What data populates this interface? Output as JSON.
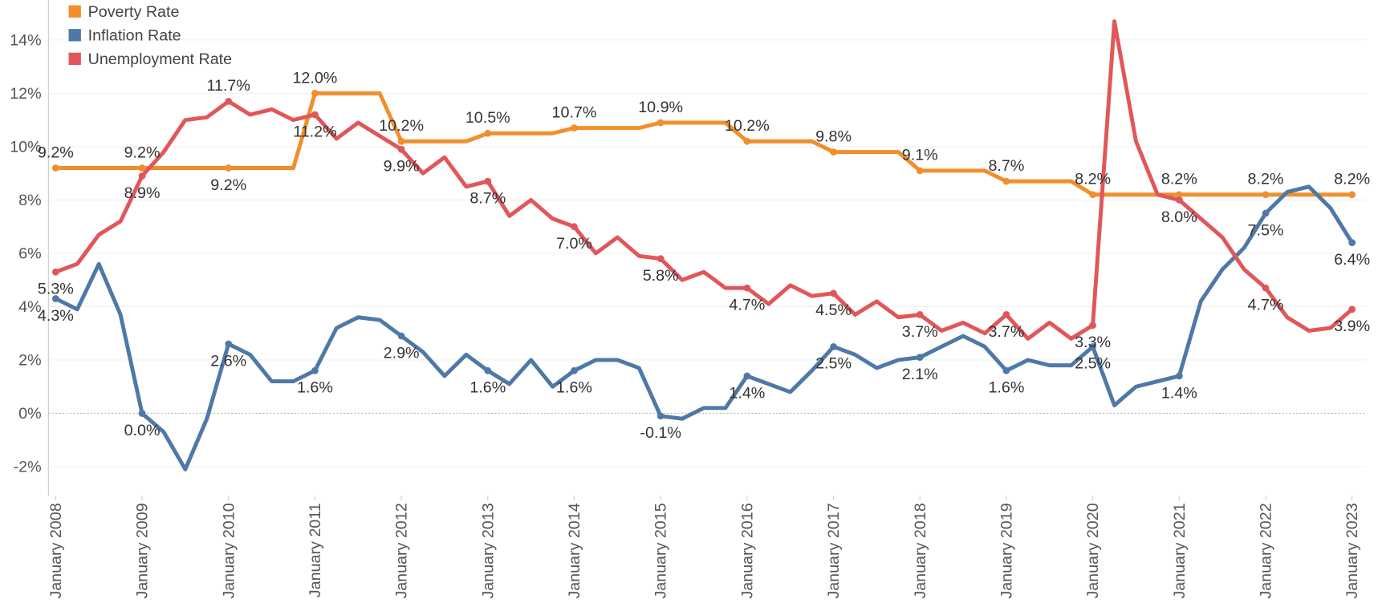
{
  "chart_data": {
    "type": "line",
    "x": [
      "2008-01",
      "2008-04",
      "2008-07",
      "2008-10",
      "2009-01",
      "2009-04",
      "2009-07",
      "2009-10",
      "2010-01",
      "2010-04",
      "2010-07",
      "2010-10",
      "2011-01",
      "2011-04",
      "2011-07",
      "2011-10",
      "2012-01",
      "2012-04",
      "2012-07",
      "2012-10",
      "2013-01",
      "2013-04",
      "2013-07",
      "2013-10",
      "2014-01",
      "2014-04",
      "2014-07",
      "2014-10",
      "2015-01",
      "2015-04",
      "2015-07",
      "2015-10",
      "2016-01",
      "2016-04",
      "2016-07",
      "2016-10",
      "2017-01",
      "2017-04",
      "2017-07",
      "2017-10",
      "2018-01",
      "2018-04",
      "2018-07",
      "2018-10",
      "2019-01",
      "2019-04",
      "2019-07",
      "2019-10",
      "2020-01",
      "2020-04",
      "2020-07",
      "2020-10",
      "2021-01",
      "2021-04",
      "2021-07",
      "2021-10",
      "2022-01",
      "2022-04",
      "2022-07",
      "2022-10",
      "2023-01"
    ],
    "xlim": [
      "2007-12",
      "2023-03"
    ],
    "xticks": [
      {
        "value": "2008-01",
        "label": "January 2008"
      },
      {
        "value": "2009-01",
        "label": "January 2009"
      },
      {
        "value": "2010-01",
        "label": "January 2010"
      },
      {
        "value": "2011-01",
        "label": "January 2011"
      },
      {
        "value": "2012-01",
        "label": "January 2012"
      },
      {
        "value": "2013-01",
        "label": "January 2013"
      },
      {
        "value": "2014-01",
        "label": "January 2014"
      },
      {
        "value": "2015-01",
        "label": "January 2015"
      },
      {
        "value": "2016-01",
        "label": "January 2016"
      },
      {
        "value": "2017-01",
        "label": "January 2017"
      },
      {
        "value": "2018-01",
        "label": "January 2018"
      },
      {
        "value": "2019-01",
        "label": "January 2019"
      },
      {
        "value": "2020-01",
        "label": "January 2020"
      },
      {
        "value": "2021-01",
        "label": "January 2021"
      },
      {
        "value": "2022-01",
        "label": "January 2022"
      },
      {
        "value": "2023-01",
        "label": "January 2023"
      }
    ],
    "ylim": [
      -3.1,
      15.5
    ],
    "yticks": [
      {
        "value": -2,
        "label": "-2%"
      },
      {
        "value": 0,
        "label": "0%"
      },
      {
        "value": 2,
        "label": "2%"
      },
      {
        "value": 4,
        "label": "4%"
      },
      {
        "value": 6,
        "label": "6%"
      },
      {
        "value": 8,
        "label": "8%"
      },
      {
        "value": 10,
        "label": "10%"
      },
      {
        "value": 12,
        "label": "12%"
      },
      {
        "value": 14,
        "label": "14%"
      }
    ],
    "grid": true,
    "legend": "top-left",
    "series": [
      {
        "name": "Poverty Rate",
        "color": "#f28e2b",
        "values": [
          9.2,
          9.2,
          9.2,
          9.2,
          9.2,
          9.2,
          9.2,
          9.2,
          9.2,
          9.2,
          9.2,
          9.2,
          12.0,
          12.0,
          12.0,
          12.0,
          10.2,
          10.2,
          10.2,
          10.2,
          10.5,
          10.5,
          10.5,
          10.5,
          10.7,
          10.7,
          10.7,
          10.7,
          10.9,
          10.9,
          10.9,
          10.9,
          10.2,
          10.2,
          10.2,
          10.2,
          9.8,
          9.8,
          9.8,
          9.8,
          9.1,
          9.1,
          9.1,
          9.1,
          8.7,
          8.7,
          8.7,
          8.7,
          8.2,
          8.2,
          8.2,
          8.2,
          8.2,
          8.2,
          8.2,
          8.2,
          8.2,
          8.2,
          8.2,
          8.2,
          8.2
        ],
        "value_labels": [
          "9.2%",
          null,
          null,
          null,
          "9.2%",
          null,
          null,
          null,
          "9.2%",
          null,
          null,
          null,
          "12.0%",
          null,
          null,
          null,
          "10.2%",
          null,
          null,
          null,
          "10.5%",
          null,
          null,
          null,
          "10.7%",
          null,
          null,
          null,
          "10.9%",
          null,
          null,
          null,
          "10.2%",
          null,
          null,
          null,
          "9.8%",
          null,
          null,
          null,
          "9.1%",
          null,
          null,
          null,
          "8.7%",
          null,
          null,
          null,
          "8.2%",
          null,
          null,
          null,
          "8.2%",
          null,
          null,
          null,
          "8.2%",
          null,
          null,
          null,
          "8.2%"
        ]
      },
      {
        "name": "Inflation Rate",
        "color": "#4e79a7",
        "values": [
          4.3,
          3.9,
          5.6,
          3.7,
          0.0,
          -0.7,
          -2.1,
          -0.2,
          2.6,
          2.2,
          1.2,
          1.2,
          1.6,
          3.2,
          3.6,
          3.5,
          2.9,
          2.3,
          1.4,
          2.2,
          1.6,
          1.1,
          2.0,
          1.0,
          1.6,
          2.0,
          2.0,
          1.7,
          -0.1,
          -0.2,
          0.2,
          0.2,
          1.4,
          1.1,
          0.8,
          1.6,
          2.5,
          2.2,
          1.7,
          2.0,
          2.1,
          2.5,
          2.9,
          2.5,
          1.6,
          2.0,
          1.8,
          1.8,
          2.5,
          0.3,
          1.0,
          1.2,
          1.4,
          4.2,
          5.4,
          6.2,
          7.5,
          8.3,
          8.5,
          7.7,
          6.4
        ],
        "value_labels": [
          "4.3%",
          null,
          null,
          null,
          "0.0%",
          null,
          null,
          null,
          "2.6%",
          null,
          null,
          null,
          "1.6%",
          null,
          null,
          null,
          "2.9%",
          null,
          null,
          null,
          "1.6%",
          null,
          null,
          null,
          "1.6%",
          null,
          null,
          null,
          "-0.1%",
          null,
          null,
          null,
          "1.4%",
          null,
          null,
          null,
          "2.5%",
          null,
          null,
          null,
          "2.1%",
          null,
          null,
          null,
          "1.6%",
          null,
          null,
          null,
          "2.5%",
          null,
          null,
          null,
          "1.4%",
          null,
          null,
          null,
          "7.5%",
          null,
          null,
          null,
          "6.4%"
        ]
      },
      {
        "name": "Unemployment Rate",
        "color": "#e15759",
        "values": [
          5.3,
          5.6,
          6.7,
          7.2,
          8.9,
          9.8,
          11.0,
          11.1,
          11.7,
          11.2,
          11.4,
          11.0,
          11.2,
          10.3,
          10.9,
          10.4,
          9.9,
          9.0,
          9.6,
          8.5,
          8.7,
          7.4,
          8.0,
          7.3,
          7.0,
          6.0,
          6.6,
          5.9,
          5.8,
          5.0,
          5.3,
          4.7,
          4.7,
          4.1,
          4.8,
          4.4,
          4.5,
          3.7,
          4.2,
          3.6,
          3.7,
          3.1,
          3.4,
          3.0,
          3.7,
          2.8,
          3.4,
          2.8,
          3.3,
          14.7,
          10.2,
          8.2,
          8.0,
          7.3,
          6.6,
          5.4,
          4.7,
          3.6,
          3.1,
          3.2,
          3.9
        ],
        "value_labels": [
          "5.3%",
          null,
          null,
          null,
          "8.9%",
          null,
          null,
          null,
          "11.7%",
          null,
          null,
          null,
          "11.2%",
          null,
          null,
          null,
          "9.9%",
          null,
          null,
          null,
          "8.7%",
          null,
          null,
          null,
          "7.0%",
          null,
          null,
          null,
          "5.8%",
          null,
          null,
          null,
          "4.7%",
          null,
          null,
          null,
          "4.5%",
          null,
          null,
          null,
          "3.7%",
          null,
          null,
          null,
          "3.7%",
          null,
          null,
          null,
          "3.3%",
          null,
          null,
          null,
          "8.0%",
          null,
          null,
          null,
          "4.7%",
          null,
          null,
          null,
          "3.9%"
        ]
      }
    ]
  }
}
